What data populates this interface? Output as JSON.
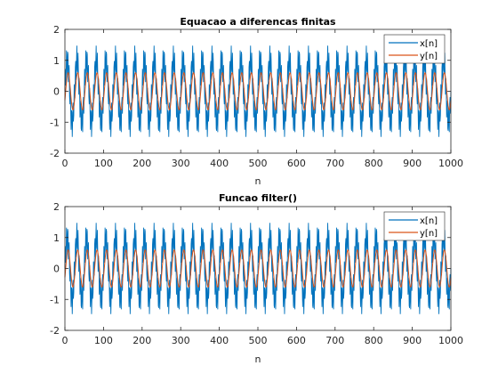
{
  "colors": {
    "series_x": "#0072BD",
    "series_y": "#D95319",
    "axis": "#262626",
    "background": "#ffffff"
  },
  "chart_data": [
    {
      "type": "line",
      "title": "Equacao a diferencas finitas",
      "xlabel": "n",
      "ylabel": "",
      "xlim": [
        0,
        1000
      ],
      "ylim": [
        -2,
        2
      ],
      "xticks": [
        0,
        100,
        200,
        300,
        400,
        500,
        600,
        700,
        800,
        900,
        1000
      ],
      "yticks": [
        -2,
        -1,
        0,
        1,
        2
      ],
      "grid": false,
      "legend": "top-right",
      "series": [
        {
          "name": "x[n]",
          "color": "#0072BD",
          "model": "sin(2*pi*0.04*n) + 0.5*sin(2*pi*0.3*n)",
          "n_range": [
            0,
            1000
          ],
          "amplitude_range": [
            -1.5,
            1.5
          ]
        },
        {
          "name": "y[n]",
          "color": "#D95319",
          "model": "0.6*sin(2*pi*0.04*n - 0.5)",
          "n_range": [
            0,
            1000
          ],
          "amplitude_range": [
            -0.6,
            0.6
          ]
        }
      ]
    },
    {
      "type": "line",
      "title": "Funcao filter()",
      "xlabel": "n",
      "ylabel": "",
      "xlim": [
        0,
        1000
      ],
      "ylim": [
        -2,
        2
      ],
      "xticks": [
        0,
        100,
        200,
        300,
        400,
        500,
        600,
        700,
        800,
        900,
        1000
      ],
      "yticks": [
        -2,
        -1,
        0,
        1,
        2
      ],
      "grid": false,
      "legend": "top-right",
      "series": [
        {
          "name": "x[n]",
          "color": "#0072BD",
          "model": "sin(2*pi*0.04*n) + 0.5*sin(2*pi*0.3*n)",
          "n_range": [
            0,
            1000
          ],
          "amplitude_range": [
            -1.5,
            1.5
          ]
        },
        {
          "name": "y[n]",
          "color": "#D95319",
          "model": "0.6*sin(2*pi*0.04*n - 0.5)",
          "n_range": [
            0,
            1000
          ],
          "amplitude_range": [
            -0.6,
            0.6
          ]
        }
      ]
    }
  ]
}
